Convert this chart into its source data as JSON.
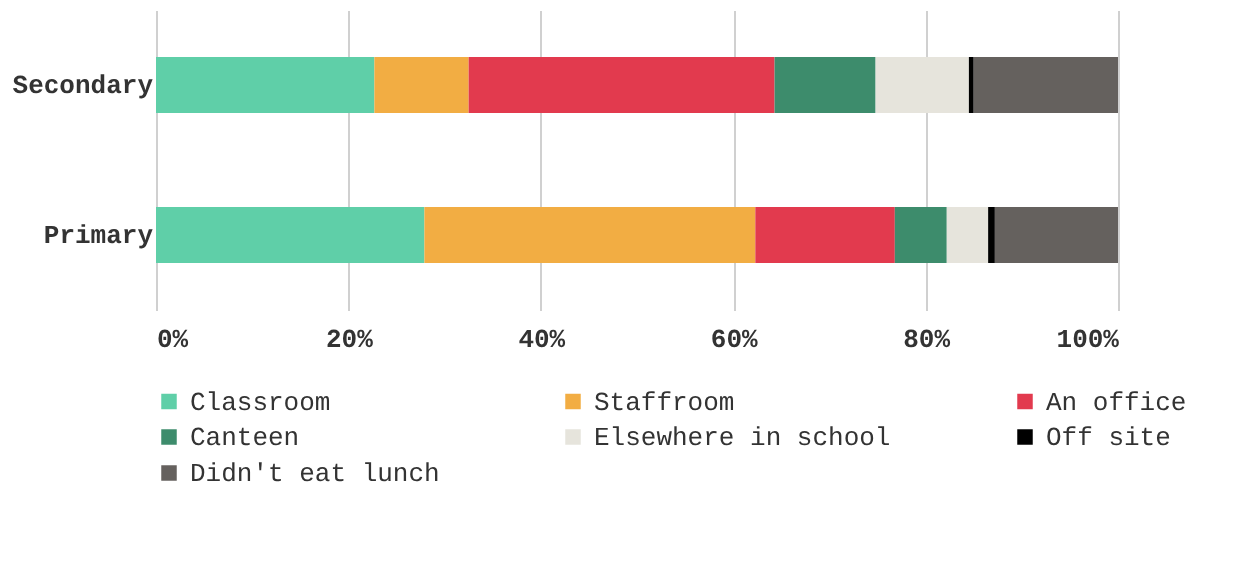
{
  "chart_data": {
    "type": "bar",
    "orientation": "horizontal",
    "stacked": true,
    "categories": [
      "Secondary",
      "Primary"
    ],
    "series": [
      {
        "name": "Classroom",
        "color": "#5fcfa8",
        "values": [
          22.7,
          27.9
        ]
      },
      {
        "name": "Staffroom",
        "color": "#f2ad43",
        "values": [
          9.8,
          34.4
        ]
      },
      {
        "name": "An office",
        "color": "#e23a4e",
        "values": [
          31.8,
          14.5
        ]
      },
      {
        "name": "Canteen",
        "color": "#3d8c6c",
        "values": [
          10.5,
          5.4
        ]
      },
      {
        "name": "Elsewhere in school",
        "color": "#e6e4dc",
        "values": [
          9.7,
          4.3
        ]
      },
      {
        "name": "Off site",
        "color": "#000000",
        "values": [
          0.5,
          0.7
        ]
      },
      {
        "name": "Didn't eat lunch",
        "color": "#65615e",
        "values": [
          15.0,
          12.8
        ]
      }
    ],
    "xlim": [
      0,
      100
    ],
    "xticks": [
      {
        "value": 0,
        "label": "0%"
      },
      {
        "value": 20,
        "label": "20%"
      },
      {
        "value": 40,
        "label": "40%"
      },
      {
        "value": 60,
        "label": "60%"
      },
      {
        "value": 80,
        "label": "80%"
      },
      {
        "value": 100,
        "label": "100%"
      }
    ],
    "grid": "x",
    "legend": "bottom"
  }
}
